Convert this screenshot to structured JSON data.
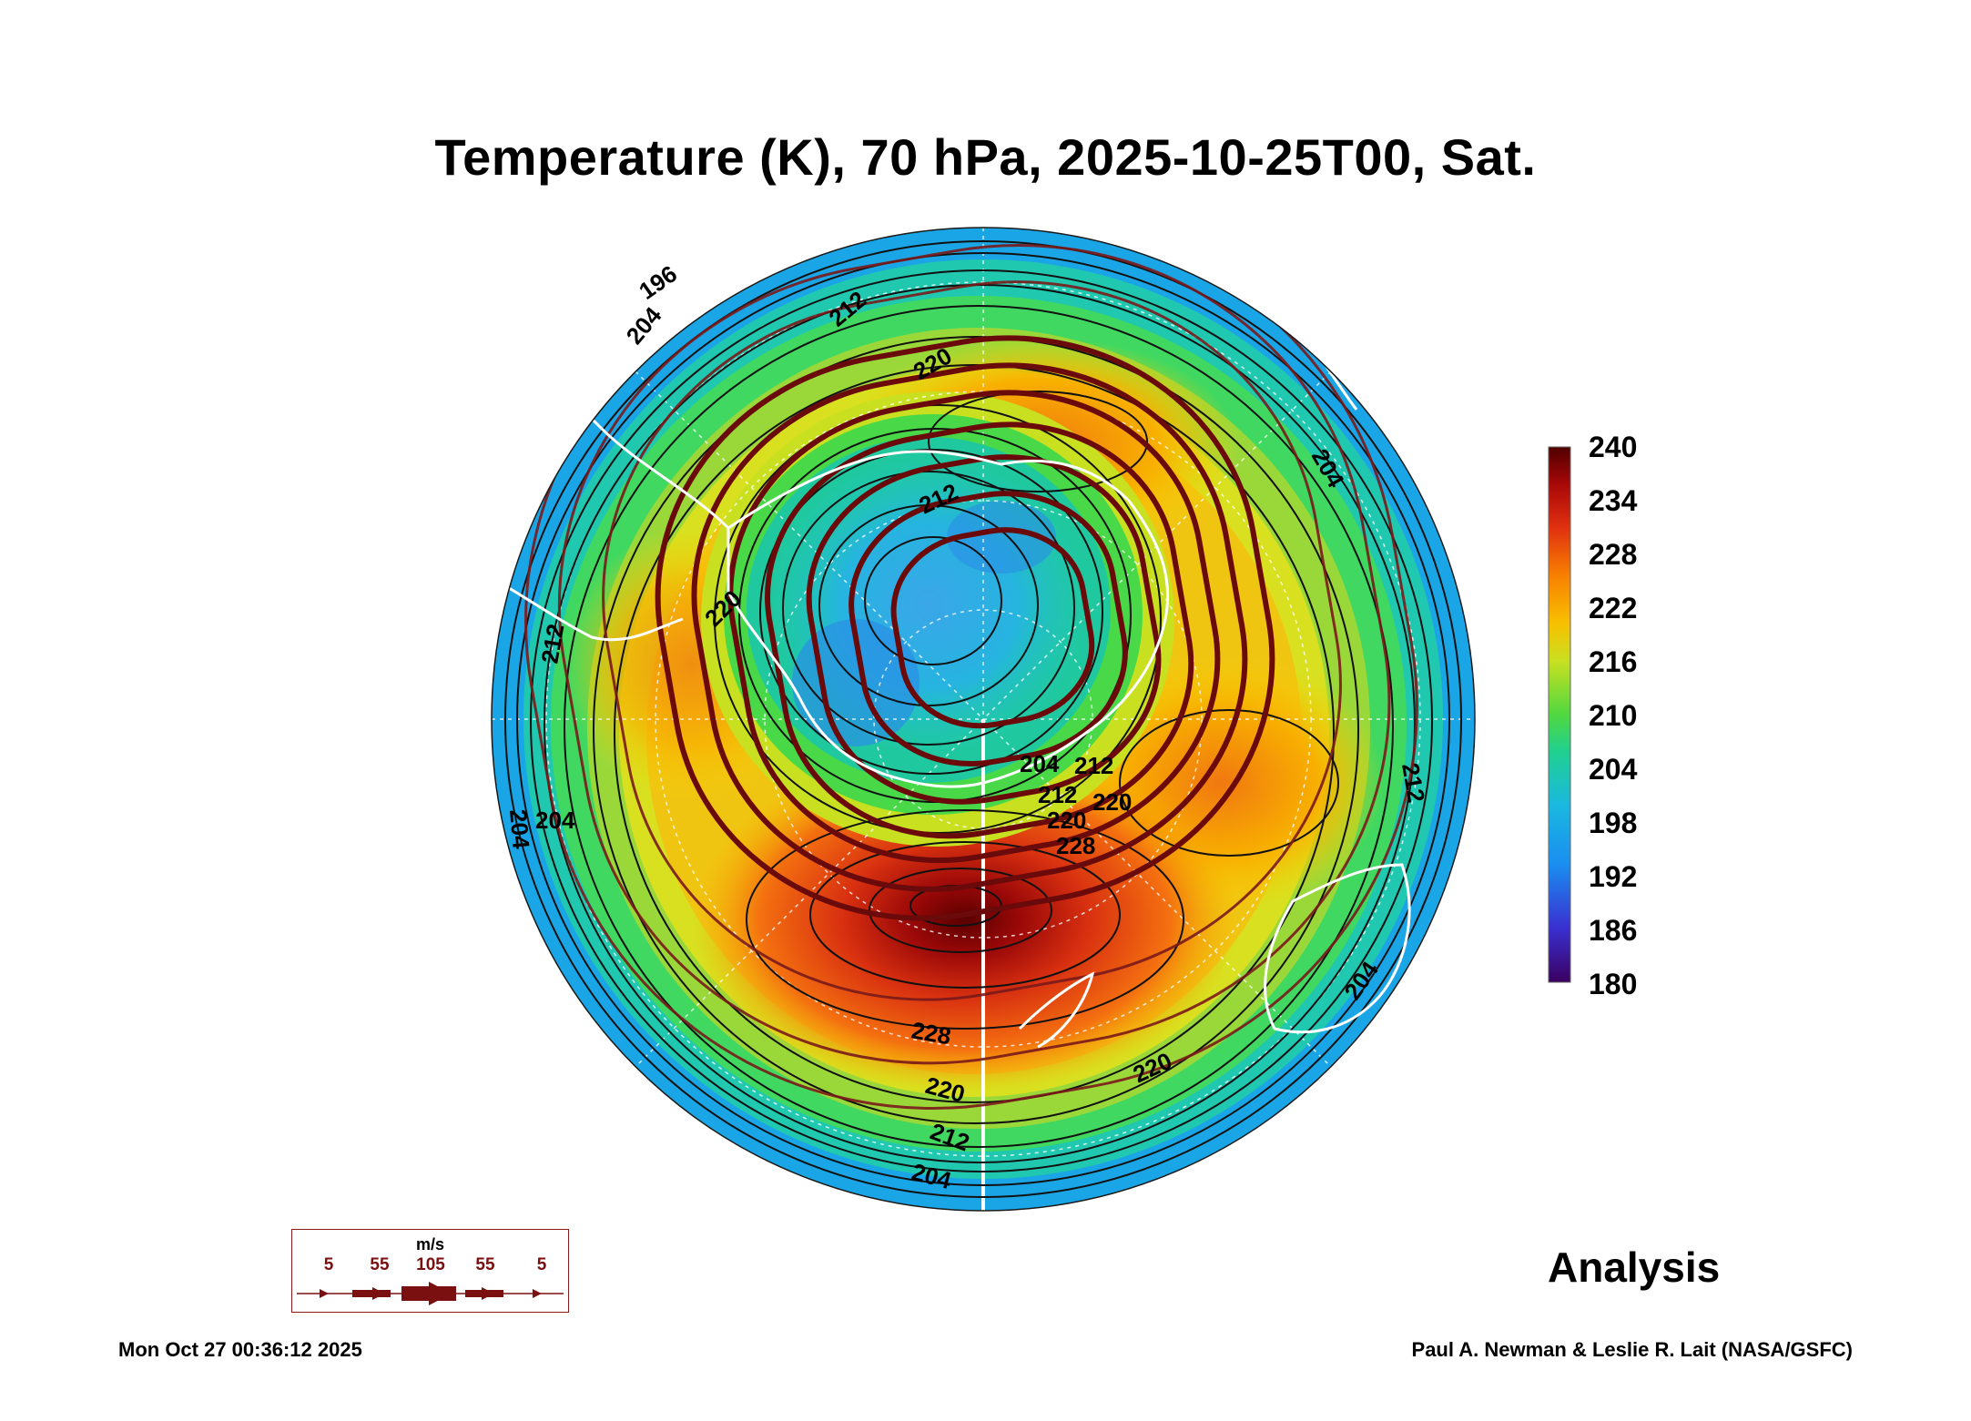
{
  "title": "Temperature (K), 70 hPa, 2025-10-25T00, Sat.",
  "colorbar": {
    "ticks": [
      "240",
      "234",
      "228",
      "222",
      "216",
      "210",
      "204",
      "198",
      "192",
      "186",
      "180"
    ],
    "colors": [
      "#4a006b",
      "#3a2fd0",
      "#1aa0f0",
      "#20c8a0",
      "#40d640",
      "#c8e020",
      "#f8c000",
      "#f88000",
      "#e03010",
      "#a80808",
      "#5a0000"
    ]
  },
  "contour_labels": [
    "196",
    "204",
    "212",
    "220",
    "212",
    "220",
    "212",
    "204",
    "212",
    "220",
    "228",
    "220",
    "212",
    "204",
    "204",
    "212",
    "204",
    "220",
    "204",
    "228",
    "220",
    "212",
    "204"
  ],
  "wind_legend": {
    "units": "m/s",
    "labels": [
      "5",
      "55",
      "105",
      "55",
      "5"
    ]
  },
  "analysis_label": "Analysis",
  "timestamp": "Mon Oct 27 00:36:12 2025",
  "credit": "Paul A. Newman & Leslie R. Lait (NASA/GSFC)"
}
